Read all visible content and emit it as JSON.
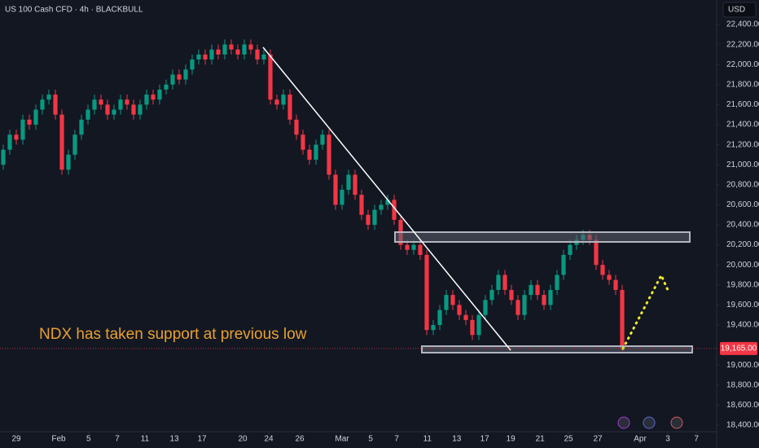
{
  "chart_data": {
    "type": "candlestick",
    "title": "US 100 Cash CFD · 4h · BLACKBULL",
    "currency": "USD",
    "annotation": "NDX has taken support at previous low",
    "up_color": "#089981",
    "down_color": "#f23645",
    "grid": false,
    "price_label": {
      "value": 19165,
      "label": "19,165.00"
    },
    "xlim": [
      -0.5,
      109.5
    ],
    "ylim": [
      18335,
      22644
    ],
    "xticks": [
      {
        "value": 2,
        "label": "29"
      },
      {
        "value": 8.5,
        "label": "Feb"
      },
      {
        "value": 13.1,
        "label": "5"
      },
      {
        "value": 17.5,
        "label": "7"
      },
      {
        "value": 21.75,
        "label": "11"
      },
      {
        "value": 26.25,
        "label": "13"
      },
      {
        "value": 30.5,
        "label": "17"
      },
      {
        "value": 36.75,
        "label": "20"
      },
      {
        "value": 40.75,
        "label": "24"
      },
      {
        "value": 45.5,
        "label": "26"
      },
      {
        "value": 52,
        "label": "Mar"
      },
      {
        "value": 56.4,
        "label": "5"
      },
      {
        "value": 60.4,
        "label": "7"
      },
      {
        "value": 65.1,
        "label": "11"
      },
      {
        "value": 69.6,
        "label": "13"
      },
      {
        "value": 73.9,
        "label": "17"
      },
      {
        "value": 77.9,
        "label": "19"
      },
      {
        "value": 82.4,
        "label": "21"
      },
      {
        "value": 86.75,
        "label": "25"
      },
      {
        "value": 91.25,
        "label": "27"
      },
      {
        "value": 97.75,
        "label": "Apr"
      },
      {
        "value": 102,
        "label": "3"
      },
      {
        "value": 106.4,
        "label": "7"
      }
    ],
    "yticks": [
      {
        "value": 22400,
        "label": "22,400.00"
      },
      {
        "value": 22200,
        "label": "22,200.00"
      },
      {
        "value": 22000,
        "label": "22,000.00"
      },
      {
        "value": 21800,
        "label": "21,800.00"
      },
      {
        "value": 21600,
        "label": "21,600.00"
      },
      {
        "value": 21400,
        "label": "21,400.00"
      },
      {
        "value": 21200,
        "label": "21,200.00"
      },
      {
        "value": 21000,
        "label": "21,000.00"
      },
      {
        "value": 20800,
        "label": "20,800.00"
      },
      {
        "value": 20600,
        "label": "20,600.00"
      },
      {
        "value": 20400,
        "label": "20,400.00"
      },
      {
        "value": 20200,
        "label": "20,200.00"
      },
      {
        "value": 20000,
        "label": "20,000.00"
      },
      {
        "value": 19800,
        "label": "19,800.00"
      },
      {
        "value": 19600,
        "label": "19,600.00"
      },
      {
        "value": 19400,
        "label": "19,400.00"
      },
      {
        "value": 19000,
        "label": "19,000.00"
      },
      {
        "value": 18800,
        "label": "18,800.00"
      },
      {
        "value": 18600,
        "label": "18,600.00"
      },
      {
        "value": 18400,
        "label": "18,400.00"
      }
    ],
    "x": [
      0,
      1,
      2,
      3,
      4,
      5,
      6,
      7,
      8,
      9,
      10,
      11,
      12,
      13,
      14,
      15,
      16,
      17,
      18,
      19,
      20,
      21,
      22,
      23,
      24,
      25,
      26,
      27,
      28,
      29,
      30,
      31,
      32,
      33,
      34,
      35,
      36,
      37,
      38,
      39,
      40,
      41,
      42,
      43,
      44,
      45,
      46,
      47,
      48,
      49,
      50,
      51,
      52,
      53,
      54,
      55,
      56,
      57,
      58,
      59,
      60,
      61,
      62,
      63,
      64,
      65,
      66,
      67,
      68,
      69,
      70,
      71,
      72,
      73,
      74,
      75,
      76,
      77,
      78,
      79,
      80,
      81,
      82,
      83,
      84,
      85,
      86,
      87,
      88,
      89,
      90,
      91,
      92,
      93,
      94,
      95
    ],
    "open": [
      21000,
      21150,
      21300,
      21250,
      21450,
      21400,
      21550,
      21650,
      21700,
      21500,
      20950,
      21100,
      21300,
      21450,
      21550,
      21650,
      21600,
      21500,
      21550,
      21650,
      21600,
      21500,
      21600,
      21700,
      21650,
      21750,
      21800,
      21900,
      21850,
      21950,
      22050,
      22100,
      22050,
      22150,
      22100,
      22200,
      22150,
      22100,
      22200,
      22150,
      22050,
      22100,
      21650,
      21600,
      21700,
      21450,
      21300,
      21150,
      21050,
      21200,
      21300,
      20900,
      20600,
      20750,
      20900,
      20700,
      20500,
      20400,
      20550,
      20600,
      20650,
      20450,
      20200,
      20150,
      20200,
      20100,
      19350,
      19400,
      19550,
      19700,
      19600,
      19500,
      19450,
      19300,
      19500,
      19650,
      19750,
      19900,
      19750,
      19650,
      19500,
      19700,
      19800,
      19700,
      19600,
      19750,
      19900,
      20100,
      20200,
      20250,
      20300,
      20250,
      20000,
      19900,
      19850,
      19750
    ],
    "high": [
      21200,
      21350,
      21350,
      21500,
      21500,
      21600,
      21700,
      21750,
      21750,
      21550,
      21150,
      21350,
      21500,
      21600,
      21700,
      21700,
      21650,
      21600,
      21700,
      21700,
      21650,
      21650,
      21750,
      21750,
      21800,
      21850,
      21950,
      21950,
      22000,
      22100,
      22150,
      22150,
      22200,
      22200,
      22250,
      22250,
      22200,
      22250,
      22250,
      22200,
      22150,
      22150,
      21700,
      21750,
      21750,
      21500,
      21350,
      21200,
      21250,
      21350,
      21350,
      20950,
      20800,
      20950,
      20950,
      20750,
      20550,
      20600,
      20650,
      20700,
      20700,
      20500,
      20250,
      20250,
      20250,
      20150,
      19450,
      19600,
      19750,
      19750,
      19650,
      19550,
      19500,
      19550,
      19700,
      19800,
      19950,
      19950,
      19800,
      19700,
      19750,
      19850,
      19850,
      19750,
      19800,
      19950,
      20150,
      20250,
      20300,
      20350,
      20350,
      20300,
      20050,
      19950,
      19900,
      19800
    ],
    "low": [
      20950,
      21100,
      21200,
      21200,
      21350,
      21350,
      21500,
      21600,
      21450,
      20900,
      20900,
      21050,
      21250,
      21400,
      21500,
      21550,
      21450,
      21450,
      21500,
      21550,
      21450,
      21450,
      21550,
      21600,
      21600,
      21700,
      21750,
      21800,
      21800,
      21900,
      22000,
      22000,
      22000,
      22050,
      22050,
      22100,
      22050,
      22050,
      22100,
      22000,
      22000,
      21600,
      21550,
      21550,
      21400,
      21250,
      21100,
      21000,
      21000,
      21150,
      20850,
      20550,
      20550,
      20700,
      20650,
      20450,
      20350,
      20350,
      20500,
      20550,
      20400,
      20150,
      20100,
      20100,
      20050,
      19300,
      19300,
      19350,
      19500,
      19550,
      19450,
      19400,
      19250,
      19250,
      19450,
      19600,
      19700,
      19700,
      19600,
      19450,
      19450,
      19650,
      19650,
      19550,
      19550,
      19700,
      19850,
      20050,
      20150,
      20200,
      20200,
      19950,
      19850,
      19800,
      19700,
      19140
    ],
    "close": [
      21150,
      21300,
      21250,
      21450,
      21400,
      21550,
      21650,
      21700,
      21500,
      20950,
      21100,
      21300,
      21450,
      21550,
      21650,
      21600,
      21500,
      21550,
      21650,
      21600,
      21500,
      21600,
      21700,
      21650,
      21750,
      21800,
      21900,
      21850,
      21950,
      22050,
      22100,
      22050,
      22150,
      22100,
      22200,
      22150,
      22100,
      22200,
      22150,
      22050,
      22100,
      21650,
      21600,
      21700,
      21450,
      21300,
      21150,
      21050,
      21200,
      21300,
      20900,
      20600,
      20750,
      20900,
      20700,
      20500,
      20400,
      20550,
      20600,
      20650,
      20450,
      20200,
      20150,
      20200,
      20100,
      19350,
      19400,
      19550,
      19700,
      19600,
      19500,
      19450,
      19300,
      19500,
      19650,
      19750,
      19900,
      19750,
      19650,
      19500,
      19700,
      19800,
      19700,
      19600,
      19750,
      19900,
      20100,
      20200,
      20250,
      20300,
      20250,
      20000,
      19900,
      19850,
      19750,
      19165
    ]
  }
}
